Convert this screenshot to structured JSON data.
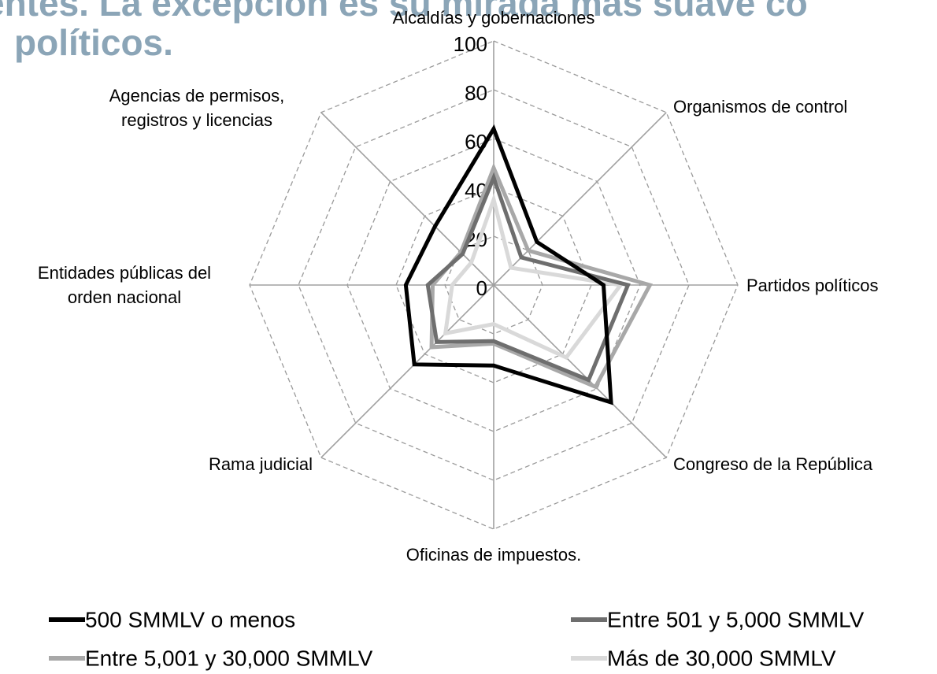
{
  "chart_data": {
    "type": "radar",
    "title": [
      "entes. La excepción es su mirada más suave co",
      "políticos."
    ],
    "categories": [
      "Alcaldías y gobernaciones",
      "Organismos de control",
      "Partidos políticos",
      "Congreso de la República",
      "Oficinas de impuestos.",
      "Rama judicial",
      "Entidades públicas del orden nacional",
      "Agencias de permisos, registros y licencias"
    ],
    "ylim": [
      0,
      100
    ],
    "yticks": [
      0,
      20,
      40,
      60,
      80,
      100
    ],
    "grid": true,
    "series": [
      {
        "name": "500 SMMLV o menos",
        "color": "#000000",
        "values": [
          64,
          25,
          45,
          68,
          33,
          46,
          36,
          34
        ]
      },
      {
        "name": "Entre 501 y 5,000 SMMLV",
        "color": "#6e6e6e",
        "values": [
          44,
          16,
          55,
          55,
          23,
          33,
          27,
          18
        ]
      },
      {
        "name": "Entre 5,001 y 30,000 SMMLV",
        "color": "#a8a8a8",
        "values": [
          48,
          20,
          64,
          59,
          24,
          36,
          25,
          19
        ]
      },
      {
        "name": "Más de 30,000 SMMLV",
        "color": "#d9d9d9",
        "values": [
          35,
          10,
          52,
          42,
          16,
          28,
          17,
          13
        ]
      }
    ]
  }
}
